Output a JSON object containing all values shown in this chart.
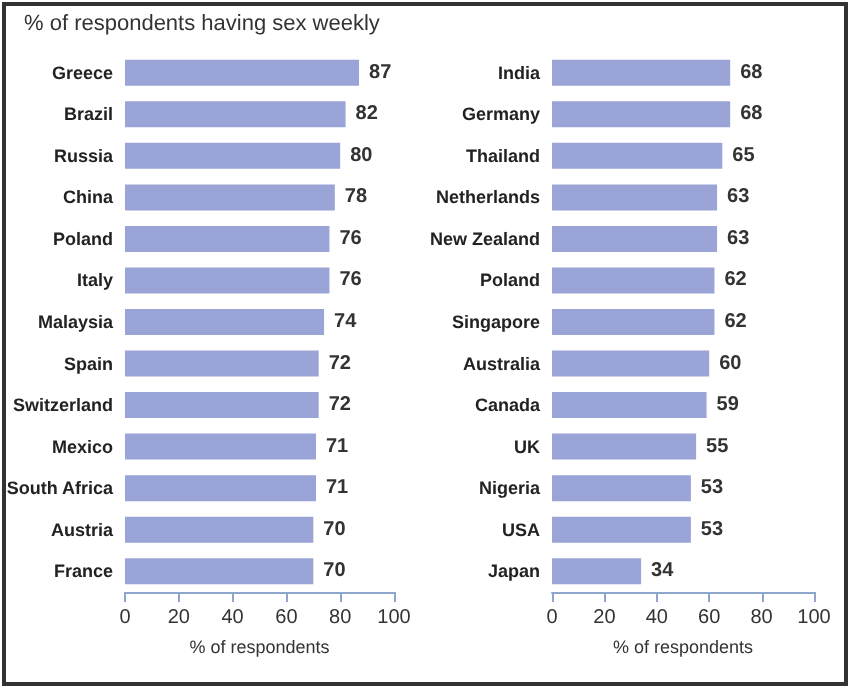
{
  "chart_data": [
    {
      "type": "bar",
      "title": "% of respondents having sex weekly",
      "orientation": "horizontal",
      "xlabel": "% of respondents",
      "categories": [
        "Greece",
        "Brazil",
        "Russia",
        "China",
        "Poland",
        "Italy",
        "Malaysia",
        "Spain",
        "Switzerland",
        "Mexico",
        "South Africa",
        "Austria",
        "France"
      ],
      "values": [
        87,
        82,
        80,
        78,
        76,
        76,
        74,
        72,
        72,
        71,
        71,
        70,
        70
      ],
      "color": "#9ba4d6",
      "xlim": [
        0,
        100
      ],
      "xticks": [
        0,
        20,
        40,
        60,
        80,
        100
      ],
      "data_labels": true,
      "grid": false
    },
    {
      "type": "bar",
      "orientation": "horizontal",
      "xlabel": "% of respondents",
      "categories": [
        "India",
        "Germany",
        "Thailand",
        "Netherlands",
        "New Zealand",
        "Poland",
        "Singapore",
        "Australia",
        "Canada",
        "UK",
        "Nigeria",
        "USA",
        "Japan"
      ],
      "values": [
        68,
        68,
        65,
        63,
        63,
        62,
        62,
        60,
        59,
        55,
        53,
        53,
        34
      ],
      "color": "#9ba4d6",
      "xlim": [
        0,
        100
      ],
      "xticks": [
        0,
        20,
        40,
        60,
        80,
        100
      ],
      "data_labels": true,
      "grid": false
    }
  ]
}
